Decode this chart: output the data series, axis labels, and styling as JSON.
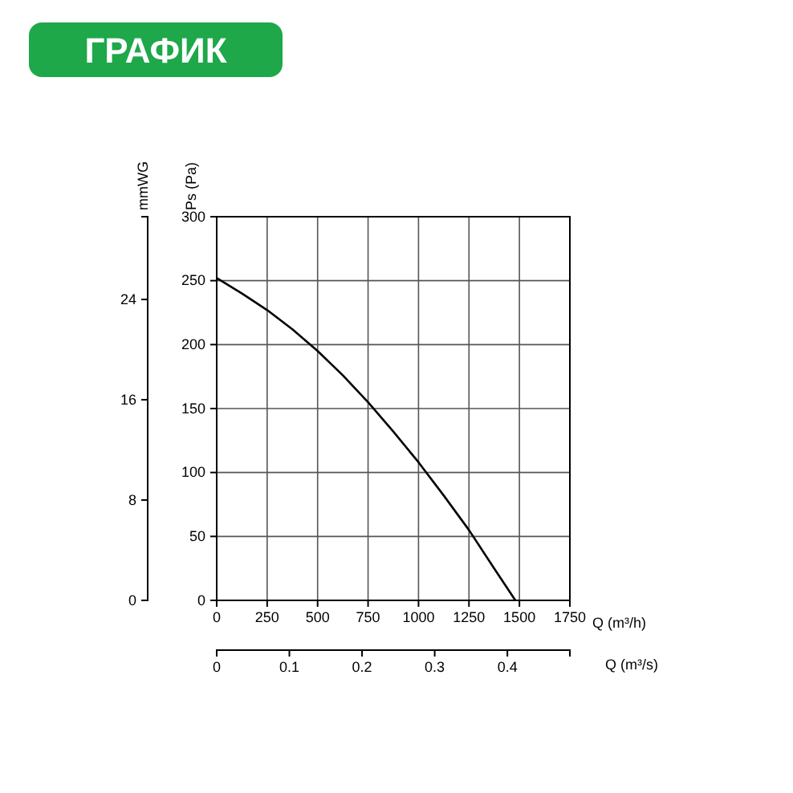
{
  "chart_data": {
    "type": "line",
    "title": "ГРАФИК",
    "xlabel": "Q (m³/h)",
    "ylabel": "Ps (Pa)",
    "y2label": "mmWG",
    "x2label": "Q (m³/s)",
    "xlim": [
      0,
      1750
    ],
    "xticks": [
      0,
      250,
      500,
      750,
      1000,
      1250,
      1500,
      1750
    ],
    "ylim": [
      0,
      300
    ],
    "yticks": [
      0,
      50,
      100,
      150,
      200,
      250,
      300
    ],
    "y2lim": [
      0,
      30.6
    ],
    "y2ticks": [
      0,
      8,
      16,
      24
    ],
    "x2lim": [
      0,
      0.486
    ],
    "x2ticks": [
      0,
      0.1,
      0.2,
      0.3,
      0.4
    ],
    "grid": true,
    "marker": "none",
    "line_style": "solid",
    "series": [
      {
        "color": "#000000",
        "x": [
          0,
          125,
          250,
          375,
          500,
          625,
          750,
          875,
          1000,
          1125,
          1250,
          1375,
          1480
        ],
        "values": [
          252,
          240,
          227,
          212,
          195,
          176,
          155,
          132,
          108,
          82,
          55,
          25,
          0
        ]
      }
    ]
  }
}
